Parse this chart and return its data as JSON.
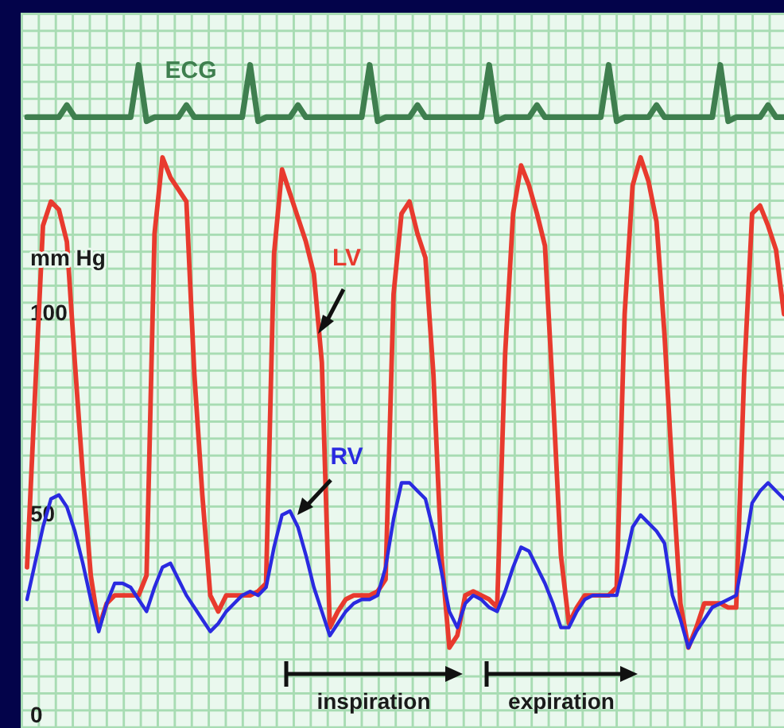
{
  "chart_data": {
    "type": "line",
    "ylabel": "mm Hg",
    "ylim": [
      -3,
      175
    ],
    "yticks": [
      0,
      50,
      100
    ],
    "grid": false,
    "legend": false,
    "marker": "none",
    "line_style": "solid",
    "categories": [
      null,
      null,
      null,
      null,
      null,
      null,
      null,
      null,
      null,
      null,
      null,
      null,
      null,
      null,
      null,
      null,
      null,
      null,
      null,
      null,
      null,
      null,
      null,
      null,
      null,
      null,
      null,
      null,
      null,
      null,
      null,
      null,
      null,
      null,
      null,
      null,
      null,
      null,
      null,
      null,
      null,
      null,
      null,
      null,
      null,
      null,
      null,
      null,
      null,
      null,
      null,
      null,
      null,
      null,
      null,
      null,
      null,
      null,
      null,
      null,
      null,
      null,
      null,
      null,
      null,
      null,
      null,
      null,
      null,
      null,
      null,
      null,
      null,
      null,
      null,
      null,
      null,
      null,
      null,
      null,
      null,
      null,
      null,
      null,
      null,
      null,
      null,
      null,
      null,
      null,
      null,
      null,
      null,
      null,
      null,
      null
    ],
    "series": [
      {
        "name": "ECG",
        "color": "#3f7f4f",
        "values": [
          149,
          149,
          149,
          149,
          149,
          152,
          149,
          149,
          149,
          149,
          149,
          149,
          149,
          149,
          162,
          148,
          149,
          149,
          149,
          149,
          152,
          149,
          149,
          149,
          149,
          149,
          149,
          149,
          162,
          148,
          149,
          149,
          149,
          149,
          152,
          149,
          149,
          149,
          149,
          149,
          149,
          149,
          149,
          162,
          148,
          149,
          149,
          149,
          149,
          152,
          149,
          149,
          149,
          149,
          149,
          149,
          149,
          149,
          162,
          148,
          149,
          149,
          149,
          149,
          152,
          149,
          149,
          149,
          149,
          149,
          149,
          149,
          149,
          162,
          148,
          149,
          149,
          149,
          149,
          152,
          149,
          149,
          149,
          149,
          149,
          149,
          149,
          162,
          148,
          149,
          149,
          149,
          149,
          152,
          149,
          149
        ]
      },
      {
        "name": "LV",
        "color": "#e83a2e",
        "values": [
          37,
          80,
          122,
          128,
          126,
          118,
          88,
          60,
          35,
          22,
          28,
          30,
          30,
          30,
          30,
          35,
          120,
          139,
          134,
          131,
          128,
          85,
          55,
          30,
          26,
          30,
          30,
          30,
          30,
          31,
          33,
          115,
          136,
          130,
          124,
          118,
          110,
          88,
          22,
          26,
          29,
          30,
          30,
          30,
          31,
          34,
          105,
          125,
          128,
          120,
          114,
          85,
          40,
          17,
          20,
          30,
          31,
          30,
          29,
          27,
          90,
          125,
          137,
          132,
          125,
          117,
          80,
          40,
          23,
          27,
          30,
          30,
          30,
          30,
          32,
          100,
          132,
          139,
          133,
          123,
          95,
          60,
          28,
          17,
          22,
          28,
          28,
          28,
          27,
          27,
          85,
          125,
          127,
          122,
          116,
          100
        ]
      },
      {
        "name": "RV",
        "color": "#2a2ae0",
        "values": [
          29,
          38,
          47,
          54,
          55,
          52,
          46,
          38,
          29,
          21,
          28,
          33,
          33,
          32,
          29,
          26,
          32,
          37,
          38,
          34,
          30,
          27,
          24,
          21,
          23,
          26,
          28,
          30,
          31,
          30,
          32,
          42,
          50,
          51,
          47,
          40,
          32,
          26,
          20,
          23,
          26,
          28,
          29,
          29,
          30,
          37,
          49,
          58,
          58,
          56,
          54,
          46,
          36,
          26,
          22,
          28,
          30,
          29,
          27,
          26,
          31,
          37,
          42,
          41,
          37,
          33,
          28,
          22,
          22,
          26,
          29,
          30,
          30,
          30,
          30,
          38,
          47,
          50,
          48,
          46,
          43,
          30,
          24,
          17,
          21,
          24,
          27,
          28,
          29,
          30,
          41,
          53,
          56,
          58,
          56,
          54
        ]
      }
    ],
    "annotations": [
      "inspiration",
      "expiration"
    ]
  }
}
